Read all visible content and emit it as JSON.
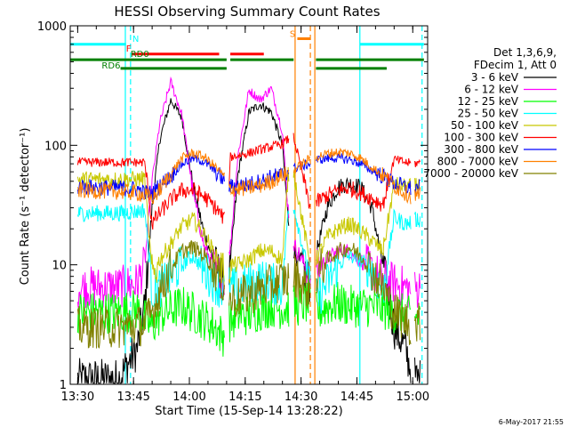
{
  "chart_data": {
    "type": "line",
    "title": "HESSI Observing Summary Count Rates",
    "xlabel": "Start Time (15-Sep-14 13:28:22)",
    "ylabel": "Count Rate (s⁻¹ detector⁻¹)",
    "yscale": "log",
    "ylim": [
      1,
      1000
    ],
    "xlim_minutes": [
      -2,
      94
    ],
    "x_ticks": [
      {
        "m": 0,
        "label": "13:30"
      },
      {
        "m": 15,
        "label": "13:45"
      },
      {
        "m": 30,
        "label": "14:00"
      },
      {
        "m": 45,
        "label": "14:15"
      },
      {
        "m": 60,
        "label": "14:30"
      },
      {
        "m": 75,
        "label": "14:45"
      },
      {
        "m": 90,
        "label": "15:00"
      }
    ],
    "y_ticks": [
      {
        "v": 1,
        "label": "1"
      },
      {
        "v": 10,
        "label": "10"
      },
      {
        "v": 100,
        "label": "100"
      },
      {
        "v": 1000,
        "label": "1000"
      }
    ],
    "legend_header": [
      "Det 1,3,6,9,",
      "FDecim 1, Att 0"
    ],
    "legend_placement": "right",
    "footer_date": "6-May-2017 21:55",
    "x_unit": "minutes after 13:30",
    "series": [
      {
        "name": "3 - 6 keV",
        "color": "#000000",
        "x": [
          0,
          11,
          16,
          18,
          20,
          22,
          25,
          28,
          31,
          34,
          37,
          39,
          40,
          41,
          43,
          46,
          49,
          52,
          55,
          56.5,
          58,
          62.5,
          64,
          67,
          70,
          73,
          76,
          79,
          82,
          85,
          88,
          89,
          90,
          91,
          92
        ],
        "y": [
          1.1,
          1.1,
          2,
          4.5,
          30,
          110,
          240,
          170,
          45,
          18,
          10,
          7.5,
          7,
          10,
          55,
          190,
          220,
          190,
          100,
          25,
          13,
          7,
          12,
          30,
          45,
          48,
          45,
          30,
          10,
          3,
          2,
          1.5,
          1.2,
          1.1,
          1.1
        ]
      },
      {
        "name": "6 - 12 keV",
        "color": "#ff00ff",
        "x": [
          0,
          11,
          16,
          18,
          20,
          22,
          25,
          28,
          31,
          34,
          37,
          39,
          40,
          41,
          43,
          46,
          49,
          52,
          55,
          56.5,
          58,
          62.5,
          64,
          67,
          70,
          73,
          76,
          79,
          82,
          85,
          88,
          90,
          91,
          92
        ],
        "y": [
          6.5,
          6.5,
          7,
          10,
          50,
          150,
          340,
          180,
          40,
          14,
          9,
          7.5,
          8,
          14,
          80,
          290,
          240,
          300,
          130,
          30,
          15,
          8,
          9,
          11,
          13,
          13,
          11,
          9,
          7.5,
          7,
          6.5,
          6,
          6.3,
          6.5
        ]
      },
      {
        "name": "12 - 25 keV",
        "color": "#00ff00",
        "x": [
          0,
          11,
          16,
          18,
          20,
          22,
          25,
          28,
          31,
          34,
          37,
          39,
          40,
          41,
          43,
          46,
          49,
          52,
          55,
          58,
          62.5,
          64,
          67,
          70,
          73,
          76,
          79,
          82,
          85,
          88,
          90,
          91,
          92
        ],
        "y": [
          4,
          4,
          4.2,
          3.5,
          3,
          3.8,
          4.2,
          4.5,
          4,
          3.5,
          3,
          2.5,
          4,
          3.3,
          3.8,
          3.8,
          4.2,
          4.5,
          4.3,
          4.5,
          4.8,
          4,
          4.5,
          4.8,
          4.5,
          4.5,
          4.5,
          4.3,
          4,
          3.8,
          3.5,
          3.7,
          4
        ]
      },
      {
        "name": "25 - 50 keV",
        "color": "#00ffff",
        "x": [
          0,
          11,
          16,
          18,
          20,
          22,
          25,
          28,
          31,
          34,
          37,
          39,
          40,
          41,
          43,
          46,
          49,
          52,
          55,
          56.5,
          58,
          62.5,
          64,
          67,
          70,
          73,
          76,
          79,
          82,
          85,
          88,
          90,
          91,
          92
        ],
        "y": [
          27,
          27,
          28,
          29,
          6,
          6.5,
          8,
          10,
          12,
          9,
          7,
          6,
          7,
          6.5,
          6.5,
          7,
          7.5,
          7,
          6.5,
          28,
          32,
          7,
          5,
          7,
          10,
          12,
          11,
          9,
          6,
          25,
          22,
          23,
          24,
          24
        ]
      },
      {
        "name": "50 - 100 keV",
        "color": "#c8c800",
        "x": [
          0,
          11,
          16,
          18,
          20,
          22,
          25,
          28,
          31,
          34,
          37,
          39,
          40,
          41,
          43,
          46,
          49,
          52,
          55,
          56.5,
          58,
          62.5,
          64,
          67,
          70,
          73,
          76,
          79,
          82,
          85,
          88,
          90,
          91,
          92
        ],
        "y": [
          52,
          52,
          52,
          53,
          8,
          11,
          15,
          21,
          24,
          18,
          12,
          9,
          8,
          10,
          10,
          11,
          13,
          13,
          11,
          56,
          60,
          10,
          11,
          17,
          20,
          22,
          19,
          16,
          13,
          47,
          45,
          45,
          46,
          46
        ]
      },
      {
        "name": "100 - 300 keV",
        "color": "#ff0000",
        "x": [
          0,
          11,
          16,
          18,
          20,
          22,
          25,
          28,
          31,
          34,
          37,
          39,
          40,
          41,
          43,
          46,
          49,
          52,
          55,
          56.5,
          58,
          62.5,
          64,
          67,
          70,
          73,
          76,
          79,
          82,
          85,
          88,
          90,
          91,
          92
        ],
        "y": [
          72,
          72,
          72,
          72,
          22,
          27,
          35,
          42,
          42,
          37,
          30,
          25,
          22,
          80,
          82,
          86,
          92,
          97,
          103,
          112,
          118,
          30,
          33,
          38,
          42,
          44,
          40,
          36,
          32,
          76,
          72,
          70,
          71,
          71
        ]
      },
      {
        "name": "300 - 800 keV",
        "color": "#0000ff",
        "x": [
          0,
          11,
          16,
          18,
          20,
          22,
          25,
          28,
          31,
          34,
          37,
          39,
          40,
          41,
          43,
          46,
          49,
          52,
          55,
          56.5,
          58,
          62.5,
          64,
          67,
          70,
          73,
          76,
          79,
          82,
          85,
          88,
          90,
          91,
          92
        ],
        "y": [
          45,
          44,
          43,
          40,
          40,
          46,
          55,
          70,
          78,
          73,
          60,
          52,
          46,
          45,
          46,
          47,
          50,
          54,
          57,
          60,
          64,
          70,
          75,
          78,
          78,
          76,
          70,
          62,
          55,
          48,
          45,
          43,
          44,
          44
        ]
      },
      {
        "name": "800 - 7000 keV",
        "color": "#ff8000",
        "x": [
          0,
          11,
          16,
          18,
          20,
          22,
          25,
          28,
          31,
          34,
          37,
          39,
          40,
          41,
          43,
          46,
          49,
          52,
          55,
          56.5,
          58,
          62.5,
          64,
          67,
          70,
          73,
          76,
          79,
          82,
          85,
          88,
          90,
          91,
          92
        ],
        "y": [
          42,
          41,
          40,
          38,
          36,
          42,
          58,
          78,
          86,
          80,
          66,
          55,
          48,
          44,
          43,
          44,
          46,
          50,
          56,
          58,
          62,
          78,
          80,
          85,
          88,
          86,
          78,
          66,
          56,
          46,
          40,
          37,
          38,
          38
        ]
      },
      {
        "name": "7000 - 20000 keV",
        "color": "#808000",
        "x": [
          0,
          11,
          16,
          18,
          20,
          22,
          25,
          28,
          31,
          34,
          37,
          39,
          40,
          41,
          43,
          46,
          49,
          52,
          55,
          56.5,
          58,
          62.5,
          64,
          67,
          70,
          73,
          76,
          79,
          82,
          85,
          88,
          90,
          91,
          92
        ],
        "y": [
          3,
          3,
          3.1,
          3.2,
          4,
          6,
          9.5,
          13,
          14,
          12,
          9,
          7,
          6,
          5,
          5.3,
          5.7,
          6.2,
          6.8,
          7.5,
          7.5,
          8,
          6,
          8,
          11,
          13,
          14,
          12,
          9,
          6.5,
          4,
          3.4,
          3,
          3.2,
          3.3
        ]
      }
    ],
    "flag_bars": [
      {
        "label": "N",
        "color": "#00ffff",
        "value": 700,
        "segments": [
          [
            -2,
            13
          ],
          [
            75.8,
            93
          ]
        ]
      },
      {
        "label": "F",
        "color": "#ff0000",
        "value": 580,
        "segments": [
          [
            14.5,
            38
          ],
          [
            41,
            50
          ]
        ]
      },
      {
        "label": "S",
        "color": "#ff8000",
        "value": 780,
        "segments": [
          [
            59,
            62.5
          ]
        ]
      },
      {
        "label": "RD0",
        "color": "#008000",
        "value": 520,
        "segments": [
          [
            -2,
            40
          ],
          [
            41,
            58
          ],
          [
            64,
            93
          ]
        ]
      },
      {
        "label": "RD6",
        "color": "#008000",
        "value": 440,
        "segments": [
          [
            11.5,
            40
          ],
          [
            64,
            83
          ]
        ]
      }
    ],
    "vertical_markers": [
      {
        "color": "#00ffff",
        "style": "solid",
        "minutes": 12.8
      },
      {
        "color": "#00ffff",
        "style": "dashed",
        "minutes": 14.2
      },
      {
        "color": "#00ffff",
        "style": "solid",
        "minutes": 75.8
      },
      {
        "color": "#00ffff",
        "style": "dashed",
        "minutes": 92.5
      },
      {
        "color": "#ff8000",
        "style": "solid",
        "minutes": 58.4
      },
      {
        "color": "#ff8000",
        "style": "dashed",
        "minutes": 62.5
      },
      {
        "color": "#ff8000",
        "style": "solid",
        "minutes": 63.7
      }
    ]
  }
}
